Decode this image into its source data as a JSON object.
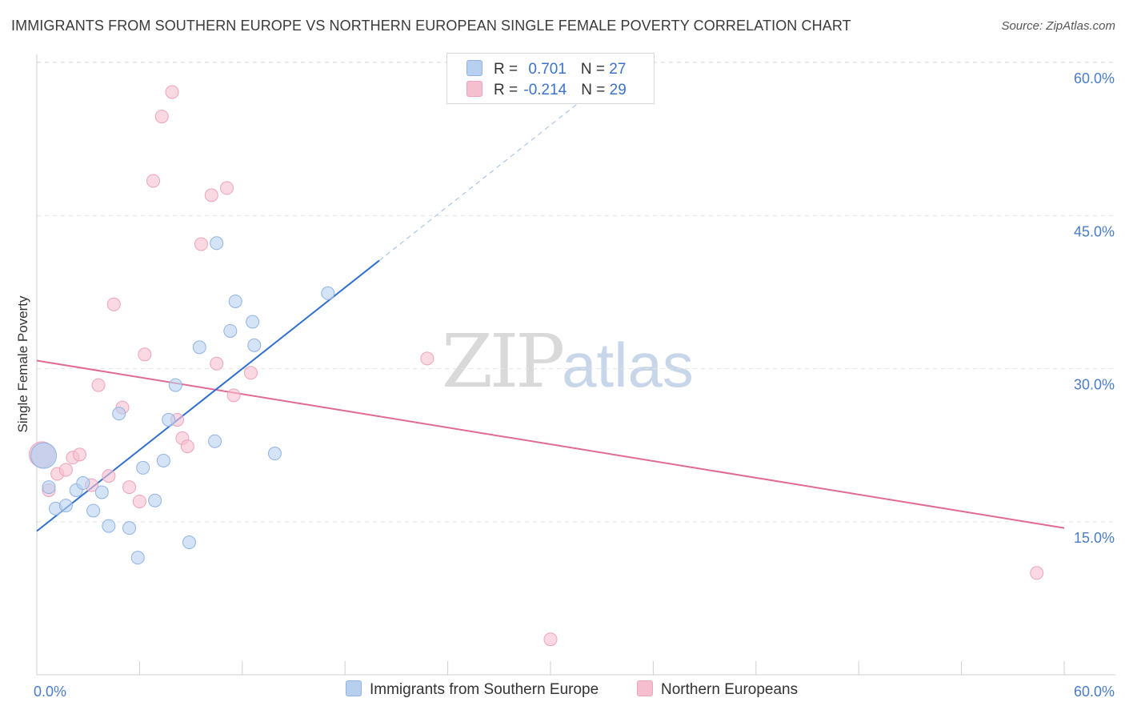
{
  "title": "IMMIGRANTS FROM SOUTHERN EUROPE VS NORTHERN EUROPEAN SINGLE FEMALE POVERTY CORRELATION CHART",
  "source": "Source: ZipAtlas.com",
  "watermark": {
    "zip": "ZIP",
    "atlas": "atlas"
  },
  "legend": {
    "rows": [
      {
        "r_label": "R = ",
        "r_value": "0.701",
        "n_label": "N = ",
        "n_value": "27"
      },
      {
        "r_label": "R = ",
        "r_value": "-0.214",
        "n_label": "N = ",
        "n_value": "29"
      }
    ]
  },
  "bottom_legend": {
    "series1": "Immigrants from Southern Europe",
    "series2": "Northern Europeans"
  },
  "colors": {
    "blue_fill": "#b8d0f0",
    "blue_stroke": "#8fb3e3",
    "blue_line": "#2f6fcf",
    "pink_fill": "#f6bfd0",
    "pink_stroke": "#eda3bb",
    "pink_line": "#e06a94",
    "grid": "#e3e3e3",
    "tick_text": "#4a7cc9"
  },
  "chart_data": {
    "type": "scatter",
    "title": "IMMIGRANTS FROM SOUTHERN EUROPE VS NORTHERN EUROPEAN SINGLE FEMALE POVERTY CORRELATION CHART",
    "xlabel": "",
    "ylabel": "Single Female Poverty",
    "xlim": [
      0,
      60
    ],
    "ylim": [
      0,
      62
    ],
    "x_tick_labels": [
      {
        "value": 0,
        "label": "0.0%"
      },
      {
        "value": 60,
        "label": "60.0%"
      }
    ],
    "y_tick_labels": [
      {
        "value": 15,
        "label": "15.0%"
      },
      {
        "value": 30,
        "label": "30.0%"
      },
      {
        "value": 45,
        "label": "45.0%"
      },
      {
        "value": 60,
        "label": "60.0%"
      }
    ],
    "series": [
      {
        "name": "Immigrants from Southern Europe",
        "R": 0.701,
        "N": 27,
        "points": [
          [
            0.7,
            18.4
          ],
          [
            1.1,
            16.3
          ],
          [
            1.7,
            16.6
          ],
          [
            2.3,
            18.1
          ],
          [
            2.7,
            18.8
          ],
          [
            3.3,
            16.1
          ],
          [
            3.8,
            17.9
          ],
          [
            4.2,
            14.6
          ],
          [
            4.8,
            25.6
          ],
          [
            5.4,
            14.4
          ],
          [
            5.9,
            11.5
          ],
          [
            6.2,
            20.3
          ],
          [
            6.9,
            17.1
          ],
          [
            7.4,
            21.0
          ],
          [
            7.7,
            25.0
          ],
          [
            8.1,
            28.4
          ],
          [
            8.9,
            13.0
          ],
          [
            9.5,
            32.1
          ],
          [
            10.4,
            22.9
          ],
          [
            10.5,
            42.3
          ],
          [
            11.3,
            33.7
          ],
          [
            11.6,
            36.6
          ],
          [
            12.6,
            34.6
          ],
          [
            12.7,
            32.3
          ],
          [
            13.9,
            21.7
          ],
          [
            17.0,
            37.4
          ],
          [
            0.4,
            21.5
          ]
        ],
        "trend": {
          "x": [
            0,
            20
          ],
          "y": [
            14.1,
            40.6
          ]
        },
        "trend_dashed": {
          "x": [
            20,
            33.5
          ],
          "y": [
            40.6,
            58.5
          ]
        }
      },
      {
        "name": "Northern Europeans",
        "R": -0.214,
        "N": 29,
        "points": [
          [
            0.7,
            18.1
          ],
          [
            1.2,
            19.7
          ],
          [
            1.7,
            20.1
          ],
          [
            2.1,
            21.3
          ],
          [
            2.5,
            21.6
          ],
          [
            3.2,
            18.6
          ],
          [
            3.6,
            28.4
          ],
          [
            4.2,
            19.5
          ],
          [
            4.5,
            36.3
          ],
          [
            5.0,
            26.2
          ],
          [
            5.4,
            18.4
          ],
          [
            6.0,
            17.0
          ],
          [
            6.3,
            31.4
          ],
          [
            6.8,
            48.4
          ],
          [
            7.3,
            54.7
          ],
          [
            7.9,
            57.1
          ],
          [
            8.2,
            25.0
          ],
          [
            8.5,
            23.2
          ],
          [
            8.8,
            22.4
          ],
          [
            9.6,
            42.2
          ],
          [
            10.2,
            47.0
          ],
          [
            10.5,
            30.5
          ],
          [
            11.1,
            47.7
          ],
          [
            11.5,
            27.4
          ],
          [
            12.5,
            29.6
          ],
          [
            22.8,
            31.0
          ],
          [
            30.0,
            3.5
          ],
          [
            58.4,
            10.0
          ],
          [
            0.3,
            21.6
          ]
        ],
        "trend": {
          "x": [
            0,
            60
          ],
          "y": [
            30.8,
            14.4
          ]
        }
      }
    ]
  }
}
